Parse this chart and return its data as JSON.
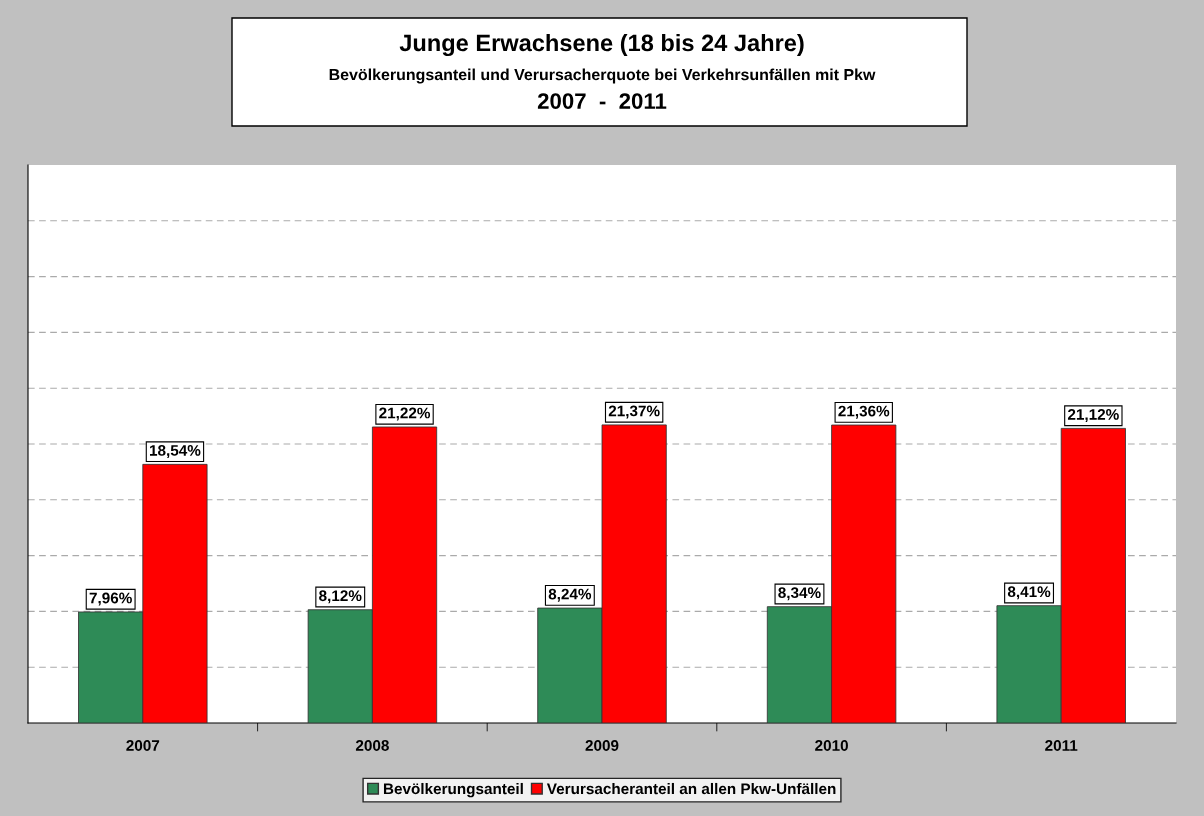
{
  "chart_data": {
    "type": "bar",
    "title": "Junge Erwachsene (18 bis 24 Jahre)",
    "subtitle": "Bevölkerungsanteil und Verursacherquote bei Verkehrsunfällen mit Pkw",
    "annotations": [
      "2007  -  2011"
    ],
    "categories": [
      "2007",
      "2008",
      "2009",
      "2010",
      "2011"
    ],
    "series": [
      {
        "name": "Bevölkerungsanteil",
        "color": "#2e8b57",
        "values": [
          7.96,
          8.12,
          8.24,
          8.34,
          8.41
        ],
        "value_labels": [
          "7,96%",
          "8,12%",
          "8,24%",
          "8,34%",
          "8,41%"
        ]
      },
      {
        "name": "Verursacheranteil an allen Pkw-Unfällen",
        "color": "#ff0000",
        "values": [
          18.54,
          21.22,
          21.37,
          21.36,
          21.12
        ],
        "value_labels": [
          "18,54%",
          "21,22%",
          "21,37%",
          "21,36%",
          "21,12%"
        ]
      }
    ],
    "ylim": [
      0,
      40
    ],
    "yticks": [
      {
        "value": 4,
        "label": null
      },
      {
        "value": 8,
        "label": null
      },
      {
        "value": 12,
        "label": null
      },
      {
        "value": 16,
        "label": null
      },
      {
        "value": 20,
        "label": null
      },
      {
        "value": 24,
        "label": null
      },
      {
        "value": 28,
        "label": null
      },
      {
        "value": 32,
        "label": null
      },
      {
        "value": 36,
        "label": null
      }
    ],
    "tick_labels": "x",
    "grid": "y",
    "legend": "bottom"
  }
}
